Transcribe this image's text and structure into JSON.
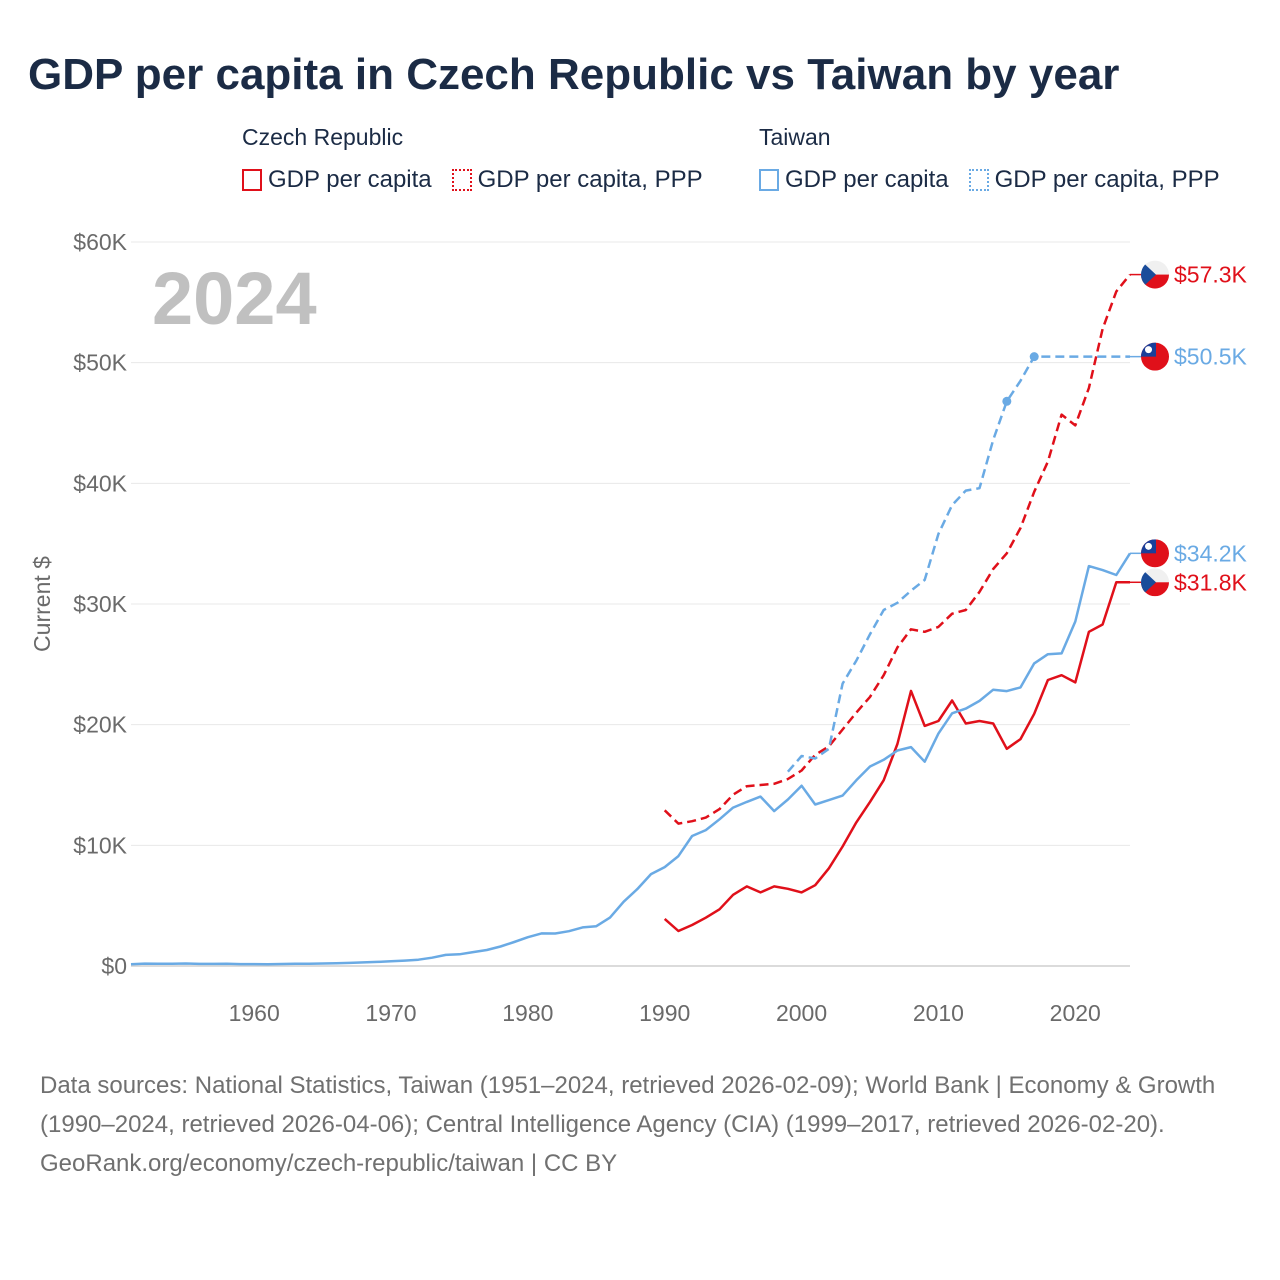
{
  "title": "GDP per capita in Czech Republic vs Taiwan by year",
  "year_watermark": "2024",
  "legend": {
    "groups": [
      {
        "name": "Czech Republic",
        "color": "#e0101a",
        "items": [
          {
            "label": "GDP per capita",
            "style": "solid"
          },
          {
            "label": "GDP per capita, PPP",
            "style": "dotted"
          }
        ]
      },
      {
        "name": "Taiwan",
        "color": "#6aaae4",
        "items": [
          {
            "label": "GDP per capita",
            "style": "solid"
          },
          {
            "label": "GDP per capita, PPP",
            "style": "dotted"
          }
        ]
      }
    ]
  },
  "footer": {
    "sources": "Data sources: National Statistics, Taiwan (1951–2024, retrieved 2026-02-09); World Bank | Economy & Growth (1990–2024, retrieved 2026-04-06); Central Intelligence Agency (CIA) (1999–2017, retrieved 2026-02-20).",
    "credit": "GeoRank.org/economy/czech-republic/taiwan | CC BY"
  },
  "chart_data": {
    "type": "line",
    "title": "GDP per capita in Czech Republic vs Taiwan by year",
    "ylabel": "Current $",
    "xlabel": "",
    "xlim": [
      1951,
      2024
    ],
    "ylim": [
      0,
      60000
    ],
    "grid": true,
    "y_ticks": [
      0,
      10000,
      20000,
      30000,
      40000,
      50000,
      60000
    ],
    "y_tick_labels": [
      "$0",
      "$10K",
      "$20K",
      "$30K",
      "$40K",
      "$50K",
      "$60K"
    ],
    "x_ticks": [
      1960,
      1970,
      1980,
      1990,
      2000,
      2010,
      2020
    ],
    "x_tick_labels": [
      "1960",
      "1970",
      "1980",
      "1990",
      "2000",
      "2010",
      "2020"
    ],
    "series": [
      {
        "name": "Czech Republic GDP per capita",
        "country": "Czech Republic",
        "color": "#e0101a",
        "dash": "solid",
        "end_label": "$31.8K",
        "flag": "czech",
        "x": [
          1990,
          1991,
          1992,
          1993,
          1994,
          1995,
          1996,
          1997,
          1998,
          1999,
          2000,
          2001,
          2002,
          2003,
          2004,
          2005,
          2006,
          2007,
          2008,
          2009,
          2010,
          2011,
          2012,
          2013,
          2014,
          2015,
          2016,
          2017,
          2018,
          2019,
          2020,
          2021,
          2022,
          2023,
          2024
        ],
        "y": [
          3900,
          2900,
          3400,
          4000,
          4700,
          5900,
          6600,
          6100,
          6600,
          6400,
          6100,
          6700,
          8100,
          9900,
          11900,
          13600,
          15400,
          18400,
          22800,
          19900,
          20300,
          22000,
          20100,
          20300,
          20100,
          18000,
          18800,
          20900,
          23700,
          24100,
          23500,
          27700,
          28300,
          31800,
          31800
        ]
      },
      {
        "name": "Czech Republic GDP per capita, PPP",
        "country": "Czech Republic",
        "color": "#e0101a",
        "dash": "dashed",
        "end_label": "$57.3K",
        "flag": "czech",
        "x": [
          1990,
          1991,
          1992,
          1993,
          1994,
          1995,
          1996,
          1997,
          1998,
          1999,
          2000,
          2001,
          2002,
          2003,
          2004,
          2005,
          2006,
          2007,
          2008,
          2009,
          2010,
          2011,
          2012,
          2013,
          2014,
          2015,
          2016,
          2017,
          2018,
          2019,
          2020,
          2021,
          2022,
          2023,
          2024
        ],
        "y": [
          12900,
          11800,
          12000,
          12300,
          13000,
          14200,
          14900,
          15000,
          15100,
          15500,
          16200,
          17500,
          18200,
          19600,
          21000,
          22300,
          24100,
          26400,
          27900,
          27700,
          28100,
          29200,
          29500,
          31000,
          32900,
          34200,
          36300,
          39300,
          41800,
          45700,
          44800,
          47900,
          52800,
          55900,
          57300
        ]
      },
      {
        "name": "Taiwan GDP per capita",
        "country": "Taiwan",
        "color": "#6aaae4",
        "dash": "solid",
        "end_label": "$34.2K",
        "flag": "taiwan",
        "x": [
          1951,
          1952,
          1953,
          1954,
          1955,
          1956,
          1957,
          1958,
          1959,
          1960,
          1961,
          1962,
          1963,
          1964,
          1965,
          1966,
          1967,
          1968,
          1969,
          1970,
          1971,
          1972,
          1973,
          1974,
          1975,
          1976,
          1977,
          1978,
          1979,
          1980,
          1981,
          1982,
          1983,
          1984,
          1985,
          1986,
          1987,
          1988,
          1989,
          1990,
          1991,
          1992,
          1993,
          1994,
          1995,
          1996,
          1997,
          1998,
          1999,
          2000,
          2001,
          2002,
          2003,
          2004,
          2005,
          2006,
          2007,
          2008,
          2009,
          2010,
          2011,
          2012,
          2013,
          2014,
          2015,
          2016,
          2017,
          2018,
          2019,
          2020,
          2021,
          2022,
          2023,
          2024
        ],
        "y": [
          150,
          200,
          180,
          190,
          210,
          170,
          175,
          180,
          160,
          160,
          150,
          165,
          180,
          190,
          210,
          230,
          260,
          300,
          340,
          390,
          450,
          520,
          690,
          920,
          970,
          1150,
          1330,
          1620,
          1990,
          2390,
          2700,
          2690,
          2880,
          3200,
          3300,
          4010,
          5330,
          6370,
          7620,
          8200,
          9110,
          10770,
          11260,
          12160,
          13130,
          13600,
          14040,
          12840,
          13800,
          14940,
          13380,
          13750,
          14120,
          15390,
          16530,
          17090,
          17860,
          18140,
          16930,
          19260,
          20940,
          21330,
          21970,
          22900,
          22780,
          23090,
          25080,
          25840,
          25910,
          28550,
          33140,
          32810,
          32400,
          34200
        ]
      },
      {
        "name": "Taiwan GDP per capita, PPP",
        "country": "Taiwan",
        "color": "#6aaae4",
        "dash": "dashed",
        "end_label": "$50.5K",
        "flag": "taiwan",
        "x": [
          1999,
          2000,
          2001,
          2002,
          2003,
          2004,
          2005,
          2006,
          2007,
          2008,
          2009,
          2010,
          2011,
          2012,
          2013,
          2014,
          2015,
          2016,
          2017,
          2024
        ],
        "y": [
          16100,
          17400,
          17200,
          18000,
          23400,
          25300,
          27500,
          29500,
          30100,
          31100,
          32000,
          35800,
          38200,
          39400,
          39600,
          43600,
          46800,
          48500,
          50500,
          50500
        ]
      }
    ],
    "marker_points": [
      {
        "series": "Taiwan GDP per capita, PPP",
        "x": 2015,
        "y": 46800
      },
      {
        "series": "Taiwan GDP per capita, PPP",
        "x": 2017,
        "y": 50500
      }
    ]
  }
}
